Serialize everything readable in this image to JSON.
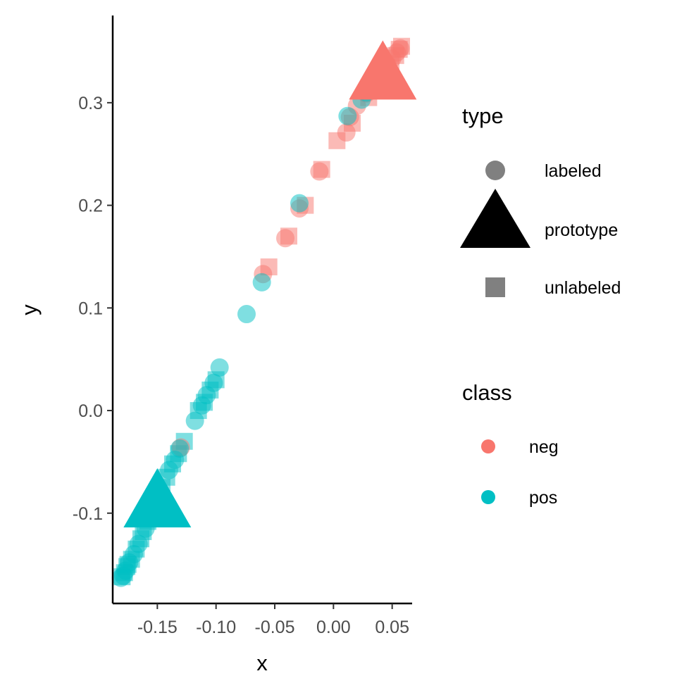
{
  "chart_data": {
    "type": "scatter",
    "xlabel": "x",
    "ylabel": "y",
    "xlim": [
      -0.188,
      0.067
    ],
    "ylim": [
      -0.188,
      0.385
    ],
    "x_ticks": [
      -0.15,
      -0.1,
      -0.05,
      0.0,
      0.05
    ],
    "x_tick_labels": [
      "-0.15",
      "-0.10",
      "-0.05",
      "0.00",
      "0.05"
    ],
    "y_ticks": [
      -0.1,
      0.0,
      0.1,
      0.2,
      0.3
    ],
    "y_tick_labels": [
      "-0.1",
      "0.0",
      "0.1",
      "0.2",
      "0.3"
    ],
    "grid": false,
    "legend_placement": "right",
    "legends": [
      {
        "title": "type",
        "entries": [
          {
            "label": "labeled",
            "shape": "circle"
          },
          {
            "label": "prototype",
            "shape": "triangle"
          },
          {
            "label": "unlabeled",
            "shape": "square"
          }
        ]
      },
      {
        "title": "class",
        "entries": [
          {
            "label": "neg",
            "color": "#F8766D"
          },
          {
            "label": "pos",
            "color": "#00BFC4"
          }
        ]
      }
    ],
    "colors": {
      "neg": "#F8766D",
      "pos": "#00BFC4"
    },
    "series": [
      {
        "class": "neg",
        "type": "labeled",
        "points": [
          [
            -0.06,
            0.133
          ],
          [
            -0.041,
            0.168
          ],
          [
            -0.029,
            0.197
          ],
          [
            -0.012,
            0.233
          ],
          [
            0.011,
            0.271
          ],
          [
            0.014,
            0.286
          ],
          [
            0.02,
            0.297
          ],
          [
            0.028,
            0.309
          ],
          [
            0.035,
            0.32
          ],
          [
            0.04,
            0.33
          ],
          [
            0.046,
            0.337
          ],
          [
            0.05,
            0.343
          ],
          [
            0.054,
            0.349
          ],
          [
            0.057,
            0.353
          ],
          [
            -0.13,
            -0.036
          ]
        ]
      },
      {
        "class": "neg",
        "type": "unlabeled",
        "points": [
          [
            -0.055,
            0.14
          ],
          [
            -0.038,
            0.17
          ],
          [
            -0.024,
            0.2
          ],
          [
            -0.01,
            0.235
          ],
          [
            0.003,
            0.263
          ],
          [
            0.016,
            0.28
          ],
          [
            0.03,
            0.305
          ],
          [
            0.037,
            0.315
          ],
          [
            0.043,
            0.328
          ],
          [
            0.049,
            0.338
          ],
          [
            0.053,
            0.346
          ],
          [
            0.056,
            0.352
          ],
          [
            0.058,
            0.355
          ],
          [
            0.045,
            0.334
          ]
        ]
      },
      {
        "class": "neg",
        "type": "prototype",
        "points": [
          [
            0.042,
            0.325
          ]
        ]
      },
      {
        "class": "pos",
        "type": "labeled",
        "points": [
          [
            -0.029,
            0.202
          ],
          [
            0.012,
            0.287
          ],
          [
            0.024,
            0.303
          ],
          [
            0.028,
            0.31
          ],
          [
            -0.061,
            0.125
          ],
          [
            -0.074,
            0.094
          ],
          [
            -0.097,
            0.042
          ],
          [
            -0.102,
            0.027
          ],
          [
            -0.108,
            0.015
          ],
          [
            -0.112,
            0.005
          ],
          [
            -0.118,
            -0.01
          ],
          [
            -0.131,
            -0.037
          ],
          [
            -0.135,
            -0.048
          ],
          [
            -0.14,
            -0.058
          ],
          [
            -0.15,
            -0.085
          ],
          [
            -0.16,
            -0.115
          ],
          [
            -0.166,
            -0.13
          ],
          [
            -0.17,
            -0.14
          ],
          [
            -0.174,
            -0.148
          ],
          [
            -0.177,
            -0.156
          ],
          [
            -0.179,
            -0.161
          ],
          [
            -0.181,
            -0.163
          ]
        ]
      },
      {
        "class": "pos",
        "type": "unlabeled",
        "points": [
          [
            -0.1,
            0.03
          ],
          [
            -0.105,
            0.02
          ],
          [
            -0.11,
            0.008
          ],
          [
            -0.115,
            0.0
          ],
          [
            -0.127,
            -0.03
          ],
          [
            -0.132,
            -0.042
          ],
          [
            -0.137,
            -0.052
          ],
          [
            -0.142,
            -0.065
          ],
          [
            -0.146,
            -0.075
          ],
          [
            -0.152,
            -0.09
          ],
          [
            -0.156,
            -0.1
          ],
          [
            -0.162,
            -0.118
          ],
          [
            -0.168,
            -0.135
          ],
          [
            -0.172,
            -0.145
          ],
          [
            -0.175,
            -0.15
          ],
          [
            -0.178,
            -0.158
          ],
          [
            -0.18,
            -0.162
          ],
          [
            -0.176,
            -0.152
          ],
          [
            -0.164,
            -0.125
          ],
          [
            -0.158,
            -0.108
          ]
        ]
      },
      {
        "class": "pos",
        "type": "prototype",
        "points": [
          [
            -0.15,
            -0.092
          ]
        ]
      }
    ]
  }
}
